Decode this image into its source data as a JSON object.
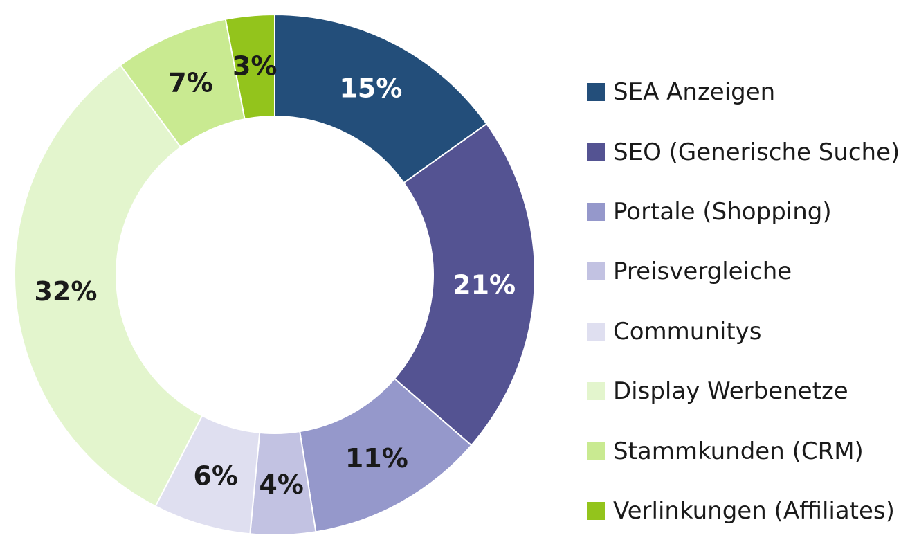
{
  "chart_data": {
    "type": "pie",
    "variant": "donut",
    "title": "",
    "legend_position": "right",
    "slices": [
      {
        "label": "SEA Anzeigen",
        "value": 15,
        "display": "15%",
        "color": "#234e7a",
        "label_color": "#ffffff"
      },
      {
        "label": "SEO (Generische Suche)",
        "value": 21,
        "display": "21%",
        "color": "#545392",
        "label_color": "#ffffff"
      },
      {
        "label": "Portale (Shopping)",
        "value": 11,
        "display": "11%",
        "color": "#9598cb",
        "label_color": "#1a1a1a"
      },
      {
        "label": "Preisvergleiche",
        "value": 4,
        "display": "4%",
        "color": "#c2c2e2",
        "label_color": "#1a1a1a"
      },
      {
        "label": "Communitys",
        "value": 6,
        "display": "6%",
        "color": "#dfdff0",
        "label_color": "#1a1a1a"
      },
      {
        "label": "Display Werbenetze",
        "value": 32,
        "display": "32%",
        "color": "#e3f5cd",
        "label_color": "#1a1a1a"
      },
      {
        "label": "Stammkunden (CRM)",
        "value": 7,
        "display": "7%",
        "color": "#c9ea91",
        "label_color": "#1a1a1a"
      },
      {
        "label": "Verlinkungen (Affiliates)",
        "value": 3,
        "display": "3%",
        "color": "#93c41c",
        "label_color": "#1a1a1a"
      }
    ]
  }
}
